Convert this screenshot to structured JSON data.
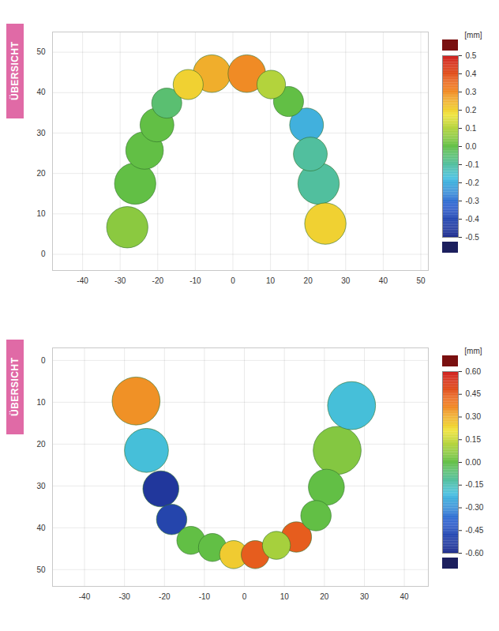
{
  "chart_data": [
    {
      "type": "scatter",
      "title": "ÜBERSICHT",
      "x": [
        -28.1,
        -26.0,
        -23.5,
        -20.2,
        -17.6,
        -11.9,
        -5.6,
        3.7,
        10.2,
        14.8,
        19.6,
        20.6,
        22.8,
        24.6
      ],
      "y": [
        6.7,
        17.5,
        25.7,
        32.0,
        37.4,
        42.0,
        44.7,
        44.7,
        42.0,
        37.8,
        32.0,
        24.8,
        17.5,
        7.6
      ],
      "values": [
        0.05,
        0.0,
        0.0,
        0.0,
        -0.05,
        0.2,
        0.25,
        0.3,
        0.1,
        0.0,
        -0.2,
        -0.1,
        -0.1,
        0.2
      ],
      "sizes": [
        5.5,
        5.5,
        5.0,
        4.5,
        4.0,
        4.0,
        5.0,
        5.0,
        3.8,
        4.0,
        4.5,
        4.5,
        5.5,
        5.5
      ],
      "xlim": [
        -48,
        52
      ],
      "ylim": [
        -4,
        55
      ],
      "xticks": [
        -40,
        -30,
        -20,
        -10,
        0,
        10,
        20,
        30,
        40,
        50
      ],
      "yticks": [
        0,
        10,
        20,
        30,
        40,
        50
      ],
      "grid": true,
      "color_label": "[mm]",
      "color_range": [
        -0.5,
        0.5
      ],
      "color_ticks": [
        0.5,
        0.4,
        0.3,
        0.2,
        0.1,
        {
          "value": 0,
          "label": "0.0"
        },
        -0.1,
        -0.2,
        -0.3,
        -0.4,
        -0.5
      ]
    },
    {
      "type": "scatter",
      "title": "ÜBERSICHT",
      "x": [
        -27.1,
        -24.5,
        -20.9,
        -18.2,
        -13.4,
        -8.0,
        -2.7,
        2.7,
        8.0,
        13.0,
        17.9,
        20.5,
        23.2,
        26.8
      ],
      "y": [
        9.7,
        21.5,
        30.7,
        38.0,
        43.0,
        44.7,
        46.4,
        46.4,
        44.2,
        42.2,
        37.1,
        30.3,
        21.5,
        10.8
      ],
      "values": [
        0.35,
        -0.2,
        -0.55,
        -0.5,
        0.0,
        0.0,
        0.25,
        0.45,
        0.1,
        0.45,
        0.0,
        0.0,
        0.05,
        -0.2
      ],
      "sizes": [
        6.0,
        5.5,
        4.5,
        3.8,
        3.5,
        3.5,
        3.5,
        3.5,
        3.5,
        3.8,
        3.8,
        4.5,
        6.0,
        6.0
      ],
      "xlim": [
        -48,
        46
      ],
      "ylim": [
        54,
        -3
      ],
      "xticks": [
        -40,
        -30,
        -20,
        -10,
        0,
        10,
        20,
        30,
        40
      ],
      "yticks": [
        0,
        10,
        20,
        30,
        40,
        50
      ],
      "grid": true,
      "color_label": "[mm]",
      "color_range": [
        -0.6,
        0.6
      ],
      "color_ticks": [
        {
          "value": 0.6,
          "label": "0.60"
        },
        {
          "value": 0.45,
          "label": "0.45"
        },
        {
          "value": 0.3,
          "label": "0.30"
        },
        {
          "value": 0.15,
          "label": "0.15"
        },
        {
          "value": 0,
          "label": "0.00"
        },
        {
          "value": -0.15,
          "label": "-0.15"
        },
        {
          "value": -0.3,
          "label": "-0.30"
        },
        {
          "value": -0.45,
          "label": "-0.45"
        },
        {
          "value": -0.6,
          "label": "-0.60"
        }
      ]
    }
  ]
}
